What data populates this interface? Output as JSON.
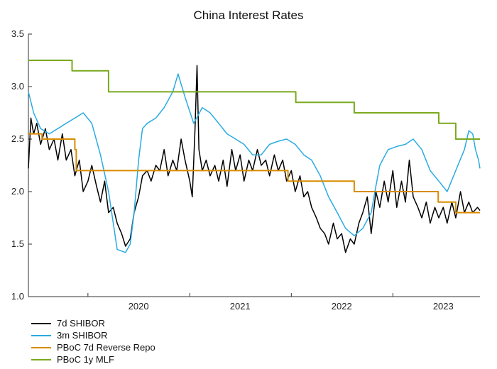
{
  "chart_data": {
    "type": "line",
    "title": "China Interest Rates",
    "xlabel": "",
    "ylabel": "",
    "xlim": [
      "2019-06-01",
      "2023-11-10"
    ],
    "ylim": [
      1.0,
      3.5
    ],
    "yticks": [
      "1.0",
      "1.5",
      "2.0",
      "2.5",
      "3.0",
      "3.5"
    ],
    "xticks": [
      "2020",
      "2021",
      "2022",
      "2023"
    ],
    "grid": false,
    "legend_position": "bottom-left",
    "series": [
      {
        "name": "7d SHIBOR",
        "color": "#000000",
        "points": [
          [
            "2019-06-01",
            2.22
          ],
          [
            "2019-06-10",
            2.7
          ],
          [
            "2019-06-20",
            2.55
          ],
          [
            "2019-07-01",
            2.65
          ],
          [
            "2019-07-15",
            2.45
          ],
          [
            "2019-08-01",
            2.6
          ],
          [
            "2019-08-15",
            2.4
          ],
          [
            "2019-09-01",
            2.5
          ],
          [
            "2019-09-15",
            2.3
          ],
          [
            "2019-10-01",
            2.55
          ],
          [
            "2019-10-15",
            2.3
          ],
          [
            "2019-11-01",
            2.4
          ],
          [
            "2019-11-15",
            2.15
          ],
          [
            "2019-12-01",
            2.3
          ],
          [
            "2019-12-15",
            2.0
          ],
          [
            "2020-01-01",
            2.1
          ],
          [
            "2020-01-15",
            2.25
          ],
          [
            "2020-02-01",
            2.05
          ],
          [
            "2020-02-15",
            1.9
          ],
          [
            "2020-03-01",
            2.1
          ],
          [
            "2020-03-15",
            1.8
          ],
          [
            "2020-04-01",
            1.85
          ],
          [
            "2020-04-15",
            1.7
          ],
          [
            "2020-05-01",
            1.6
          ],
          [
            "2020-05-15",
            1.48
          ],
          [
            "2020-06-01",
            1.55
          ],
          [
            "2020-06-15",
            1.8
          ],
          [
            "2020-07-01",
            1.95
          ],
          [
            "2020-07-15",
            2.15
          ],
          [
            "2020-08-01",
            2.2
          ],
          [
            "2020-08-15",
            2.1
          ],
          [
            "2020-09-01",
            2.25
          ],
          [
            "2020-09-15",
            2.2
          ],
          [
            "2020-10-01",
            2.4
          ],
          [
            "2020-10-15",
            2.15
          ],
          [
            "2020-11-01",
            2.3
          ],
          [
            "2020-11-15",
            2.2
          ],
          [
            "2020-12-01",
            2.5
          ],
          [
            "2020-12-15",
            2.3
          ],
          [
            "2021-01-01",
            2.1
          ],
          [
            "2021-01-10",
            1.95
          ],
          [
            "2021-01-20",
            2.6
          ],
          [
            "2021-01-27",
            3.2
          ],
          [
            "2021-02-03",
            2.4
          ],
          [
            "2021-02-15",
            2.2
          ],
          [
            "2021-03-01",
            2.3
          ],
          [
            "2021-03-15",
            2.15
          ],
          [
            "2021-04-01",
            2.25
          ],
          [
            "2021-04-15",
            2.1
          ],
          [
            "2021-05-01",
            2.3
          ],
          [
            "2021-05-15",
            2.05
          ],
          [
            "2021-06-01",
            2.4
          ],
          [
            "2021-06-15",
            2.2
          ],
          [
            "2021-07-01",
            2.35
          ],
          [
            "2021-07-15",
            2.1
          ],
          [
            "2021-08-01",
            2.3
          ],
          [
            "2021-08-15",
            2.2
          ],
          [
            "2021-09-01",
            2.4
          ],
          [
            "2021-09-15",
            2.25
          ],
          [
            "2021-10-01",
            2.3
          ],
          [
            "2021-10-15",
            2.15
          ],
          [
            "2021-11-01",
            2.35
          ],
          [
            "2021-11-15",
            2.2
          ],
          [
            "2021-12-01",
            2.3
          ],
          [
            "2021-12-15",
            2.1
          ],
          [
            "2022-01-01",
            2.2
          ],
          [
            "2022-01-15",
            2.0
          ],
          [
            "2022-02-01",
            2.15
          ],
          [
            "2022-02-15",
            1.95
          ],
          [
            "2022-03-01",
            2.0
          ],
          [
            "2022-03-15",
            1.85
          ],
          [
            "2022-04-01",
            1.75
          ],
          [
            "2022-04-15",
            1.65
          ],
          [
            "2022-05-01",
            1.6
          ],
          [
            "2022-05-15",
            1.5
          ],
          [
            "2022-06-01",
            1.7
          ],
          [
            "2022-06-15",
            1.55
          ],
          [
            "2022-07-01",
            1.6
          ],
          [
            "2022-07-15",
            1.42
          ],
          [
            "2022-08-01",
            1.55
          ],
          [
            "2022-08-15",
            1.5
          ],
          [
            "2022-09-01",
            1.7
          ],
          [
            "2022-09-15",
            1.8
          ],
          [
            "2022-10-01",
            1.95
          ],
          [
            "2022-10-15",
            1.6
          ],
          [
            "2022-11-01",
            2.0
          ],
          [
            "2022-11-15",
            1.85
          ],
          [
            "2022-12-01",
            2.1
          ],
          [
            "2022-12-15",
            1.9
          ],
          [
            "2023-01-01",
            2.2
          ],
          [
            "2023-01-15",
            1.85
          ],
          [
            "2023-02-01",
            2.1
          ],
          [
            "2023-02-15",
            1.9
          ],
          [
            "2023-03-01",
            2.3
          ],
          [
            "2023-03-15",
            1.95
          ],
          [
            "2023-04-01",
            1.85
          ],
          [
            "2023-04-15",
            1.75
          ],
          [
            "2023-05-01",
            1.9
          ],
          [
            "2023-05-15",
            1.7
          ],
          [
            "2023-06-01",
            1.85
          ],
          [
            "2023-06-15",
            1.75
          ],
          [
            "2023-07-01",
            1.85
          ],
          [
            "2023-07-15",
            1.7
          ],
          [
            "2023-08-01",
            1.9
          ],
          [
            "2023-08-15",
            1.75
          ],
          [
            "2023-09-01",
            2.0
          ],
          [
            "2023-09-15",
            1.8
          ],
          [
            "2023-10-01",
            1.9
          ],
          [
            "2023-10-15",
            1.8
          ],
          [
            "2023-11-01",
            1.85
          ],
          [
            "2023-11-10",
            1.82
          ]
        ]
      },
      {
        "name": "3m SHIBOR",
        "color": "#29abe2",
        "points": [
          [
            "2019-06-01",
            2.95
          ],
          [
            "2019-06-20",
            2.75
          ],
          [
            "2019-07-15",
            2.6
          ],
          [
            "2019-08-15",
            2.55
          ],
          [
            "2019-09-15",
            2.6
          ],
          [
            "2019-10-15",
            2.65
          ],
          [
            "2019-11-15",
            2.7
          ],
          [
            "2019-12-15",
            2.75
          ],
          [
            "2020-01-15",
            2.65
          ],
          [
            "2020-02-15",
            2.35
          ],
          [
            "2020-03-15",
            2.0
          ],
          [
            "2020-04-01",
            1.7
          ],
          [
            "2020-04-15",
            1.45
          ],
          [
            "2020-05-15",
            1.42
          ],
          [
            "2020-06-01",
            1.5
          ],
          [
            "2020-06-15",
            1.8
          ],
          [
            "2020-07-01",
            2.3
          ],
          [
            "2020-07-15",
            2.6
          ],
          [
            "2020-08-01",
            2.65
          ],
          [
            "2020-09-01",
            2.7
          ],
          [
            "2020-10-01",
            2.8
          ],
          [
            "2020-11-01",
            2.95
          ],
          [
            "2020-11-20",
            3.12
          ],
          [
            "2020-12-15",
            2.9
          ],
          [
            "2021-01-15",
            2.65
          ],
          [
            "2021-02-15",
            2.8
          ],
          [
            "2021-03-15",
            2.75
          ],
          [
            "2021-04-15",
            2.65
          ],
          [
            "2021-05-15",
            2.55
          ],
          [
            "2021-06-15",
            2.5
          ],
          [
            "2021-07-15",
            2.45
          ],
          [
            "2021-08-15",
            2.35
          ],
          [
            "2021-09-15",
            2.35
          ],
          [
            "2021-10-15",
            2.45
          ],
          [
            "2021-11-15",
            2.48
          ],
          [
            "2021-12-15",
            2.5
          ],
          [
            "2022-01-15",
            2.45
          ],
          [
            "2022-02-15",
            2.35
          ],
          [
            "2022-03-15",
            2.3
          ],
          [
            "2022-04-15",
            2.15
          ],
          [
            "2022-05-15",
            1.95
          ],
          [
            "2022-06-15",
            1.8
          ],
          [
            "2022-07-15",
            1.65
          ],
          [
            "2022-08-15",
            1.58
          ],
          [
            "2022-09-15",
            1.65
          ],
          [
            "2022-10-15",
            1.8
          ],
          [
            "2022-11-01",
            2.05
          ],
          [
            "2022-11-15",
            2.25
          ],
          [
            "2022-12-15",
            2.4
          ],
          [
            "2023-01-15",
            2.43
          ],
          [
            "2023-02-15",
            2.45
          ],
          [
            "2023-03-15",
            2.5
          ],
          [
            "2023-04-15",
            2.4
          ],
          [
            "2023-05-15",
            2.2
          ],
          [
            "2023-06-15",
            2.1
          ],
          [
            "2023-07-15",
            2.0
          ],
          [
            "2023-08-15",
            2.2
          ],
          [
            "2023-09-15",
            2.4
          ],
          [
            "2023-10-01",
            2.58
          ],
          [
            "2023-10-15",
            2.55
          ],
          [
            "2023-10-25",
            2.4
          ],
          [
            "2023-11-05",
            2.3
          ],
          [
            "2023-11-10",
            2.22
          ]
        ]
      },
      {
        "name": "PBoC 7d Reverse Repo",
        "color": "#d98c00",
        "step": true,
        "points": [
          [
            "2019-06-01",
            2.55
          ],
          [
            "2019-07-20",
            2.5
          ],
          [
            "2019-11-15",
            2.4
          ],
          [
            "2019-11-20",
            2.2
          ],
          [
            "2021-12-20",
            2.1
          ],
          [
            "2022-08-15",
            2.0
          ],
          [
            "2023-06-13",
            1.9
          ],
          [
            "2023-08-15",
            1.8
          ],
          [
            "2023-11-10",
            1.8
          ]
        ]
      },
      {
        "name": "PBoC 1y MLF",
        "color": "#7aa91e",
        "step": true,
        "points": [
          [
            "2019-06-01",
            3.25
          ],
          [
            "2019-11-05",
            3.15
          ],
          [
            "2020-03-15",
            2.95
          ],
          [
            "2022-01-17",
            2.85
          ],
          [
            "2022-08-15",
            2.75
          ],
          [
            "2023-06-15",
            2.65
          ],
          [
            "2023-08-15",
            2.5
          ],
          [
            "2023-11-10",
            2.5
          ]
        ]
      }
    ]
  }
}
